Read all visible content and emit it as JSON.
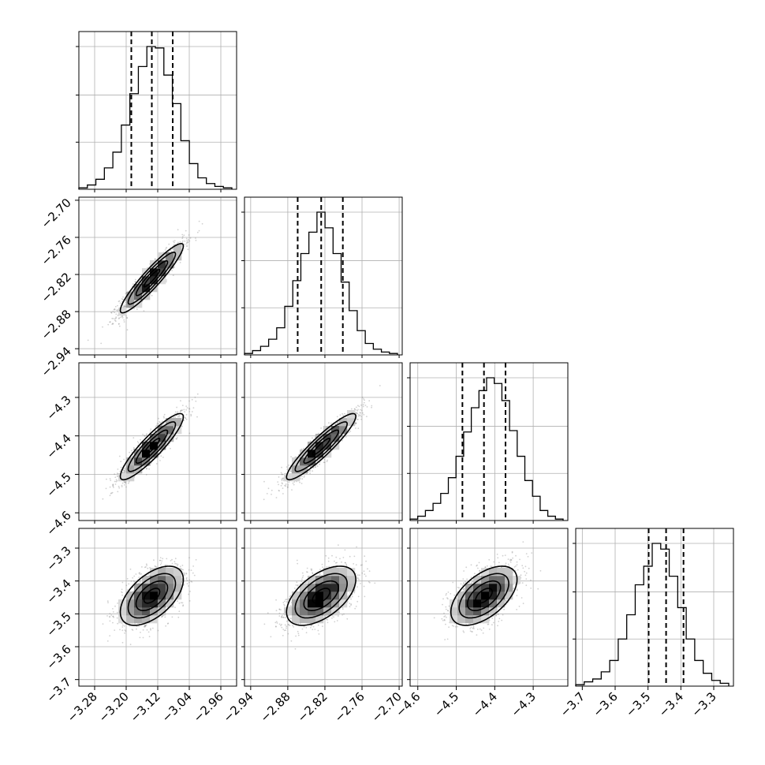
{
  "chart_data": {
    "type": "corner",
    "parameters": [
      {
        "id": "p0",
        "range": [
          -3.32,
          -2.92
        ],
        "ticks": [
          -3.28,
          -3.2,
          -3.12,
          -3.04,
          -2.96
        ],
        "tick_labels": [
          "−3.28",
          "−3.20",
          "−3.12",
          "−3.04",
          "−2.96"
        ],
        "quantiles": [
          -3.187,
          -3.135,
          -3.082
        ]
      },
      {
        "id": "p1",
        "range": [
          -2.95,
          -2.695
        ],
        "ticks": [
          -2.94,
          -2.88,
          -2.82,
          -2.76,
          -2.7
        ],
        "tick_labels": [
          "−2.94",
          "−2.88",
          "−2.82",
          "−2.76",
          "−2.70"
        ],
        "quantiles": [
          -2.864,
          -2.826,
          -2.791
        ]
      },
      {
        "id": "p2",
        "range": [
          -4.62,
          -4.21
        ],
        "ticks": [
          -4.6,
          -4.5,
          -4.4,
          -4.3
        ],
        "tick_labels": [
          "−4.6",
          "−4.5",
          "−4.4",
          "−4.3"
        ],
        "quantiles": [
          -4.484,
          -4.428,
          -4.372
        ]
      },
      {
        "id": "p3",
        "range": [
          -3.72,
          -3.24
        ],
        "ticks": [
          -3.7,
          -3.6,
          -3.5,
          -3.4,
          -3.3
        ],
        "tick_labels": [
          "−3.7",
          "−3.6",
          "−3.5",
          "−3.4",
          "−3.3"
        ],
        "quantiles": [
          -3.498,
          -3.445,
          -3.392
        ]
      }
    ],
    "diagonal_histograms": [
      [
        1,
        3,
        7,
        15,
        26,
        45,
        67,
        86,
        100,
        99,
        80,
        60,
        34,
        18,
        8,
        4,
        2,
        1
      ],
      [
        1,
        3,
        6,
        11,
        19,
        34,
        52,
        71,
        86,
        100,
        89,
        71,
        51,
        31,
        17,
        8,
        4,
        2,
        1
      ],
      [
        1,
        3,
        7,
        12,
        19,
        30,
        45,
        62,
        79,
        91,
        100,
        96,
        84,
        63,
        45,
        28,
        17,
        7,
        3,
        1
      ],
      [
        1,
        3,
        5,
        10,
        18,
        33,
        50,
        71,
        84,
        100,
        96,
        77,
        55,
        33,
        18,
        9,
        4,
        2
      ]
    ],
    "pairs": [
      {
        "x": 0,
        "y": 1,
        "center": [
          -3.135,
          -2.826
        ],
        "sigma": [
          0.04,
          0.028
        ],
        "rho": 0.93
      },
      {
        "x": 0,
        "y": 2,
        "center": [
          -3.135,
          -4.428
        ],
        "sigma": [
          0.04,
          0.043
        ],
        "rho": 0.9
      },
      {
        "x": 1,
        "y": 2,
        "center": [
          -2.826,
          -4.428
        ],
        "sigma": [
          0.028,
          0.043
        ],
        "rho": 0.92
      },
      {
        "x": 0,
        "y": 3,
        "center": [
          -3.135,
          -3.445
        ],
        "sigma": [
          0.04,
          0.045
        ],
        "rho": 0.55
      },
      {
        "x": 1,
        "y": 3,
        "center": [
          -2.826,
          -3.445
        ],
        "sigma": [
          0.028,
          0.045
        ],
        "rho": 0.55
      },
      {
        "x": 2,
        "y": 3,
        "center": [
          -4.428,
          -3.445
        ],
        "sigma": [
          0.043,
          0.045
        ],
        "rho": 0.55
      }
    ],
    "contour_levels_sigma": [
      0.5,
      1.0,
      1.5,
      2.0
    ],
    "grid": true,
    "xlabel": "",
    "ylabel": ""
  },
  "colors": {
    "axis": "#000000",
    "grid": "#b0b0b0",
    "scatter": "#7a7a7a",
    "density_dark": "#000000",
    "density_light": "#ffffff"
  }
}
